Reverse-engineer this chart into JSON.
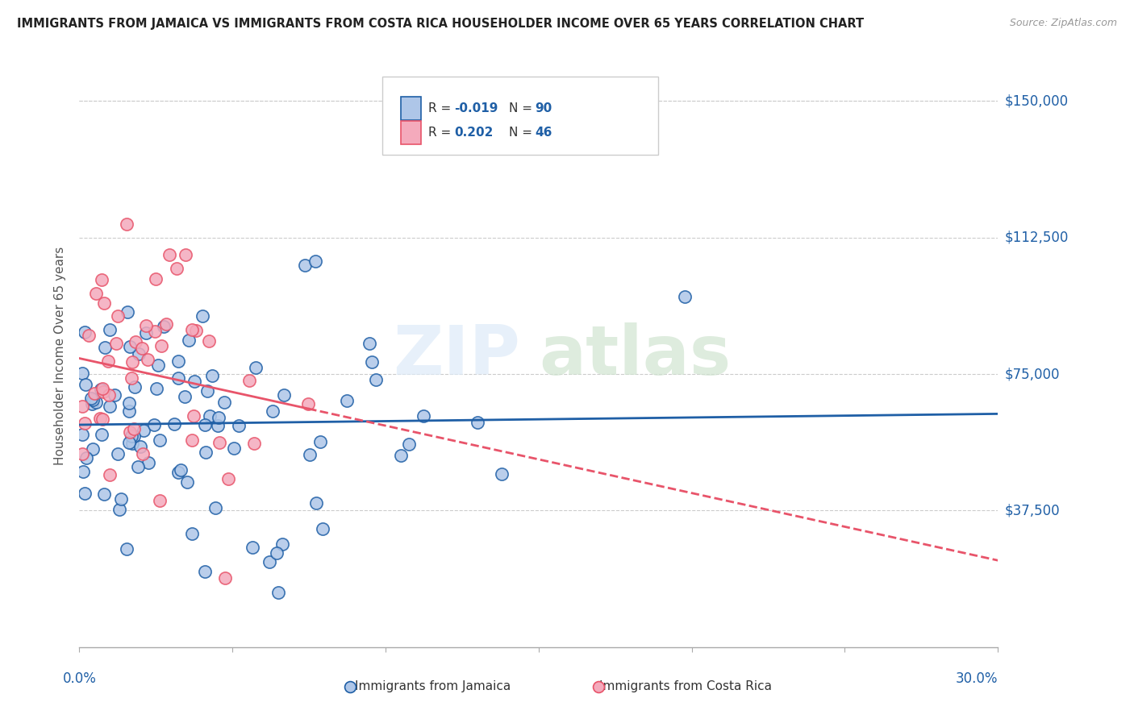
{
  "title": "IMMIGRANTS FROM JAMAICA VS IMMIGRANTS FROM COSTA RICA HOUSEHOLDER INCOME OVER 65 YEARS CORRELATION CHART",
  "source": "Source: ZipAtlas.com",
  "ylabel": "Householder Income Over 65 years",
  "ytick_labels": [
    "$150,000",
    "$112,500",
    "$75,000",
    "$37,500"
  ],
  "ytick_values": [
    150000,
    112500,
    75000,
    37500
  ],
  "xmin": 0.0,
  "xmax": 0.3,
  "ymin": 0,
  "ymax": 160000,
  "jamaica_R": -0.019,
  "jamaica_N": 90,
  "costarica_R": 0.202,
  "costarica_N": 46,
  "jamaica_color": "#aec6e8",
  "costarica_color": "#f4aabc",
  "jamaica_line_color": "#1f5fa6",
  "costarica_line_color": "#e8546a"
}
